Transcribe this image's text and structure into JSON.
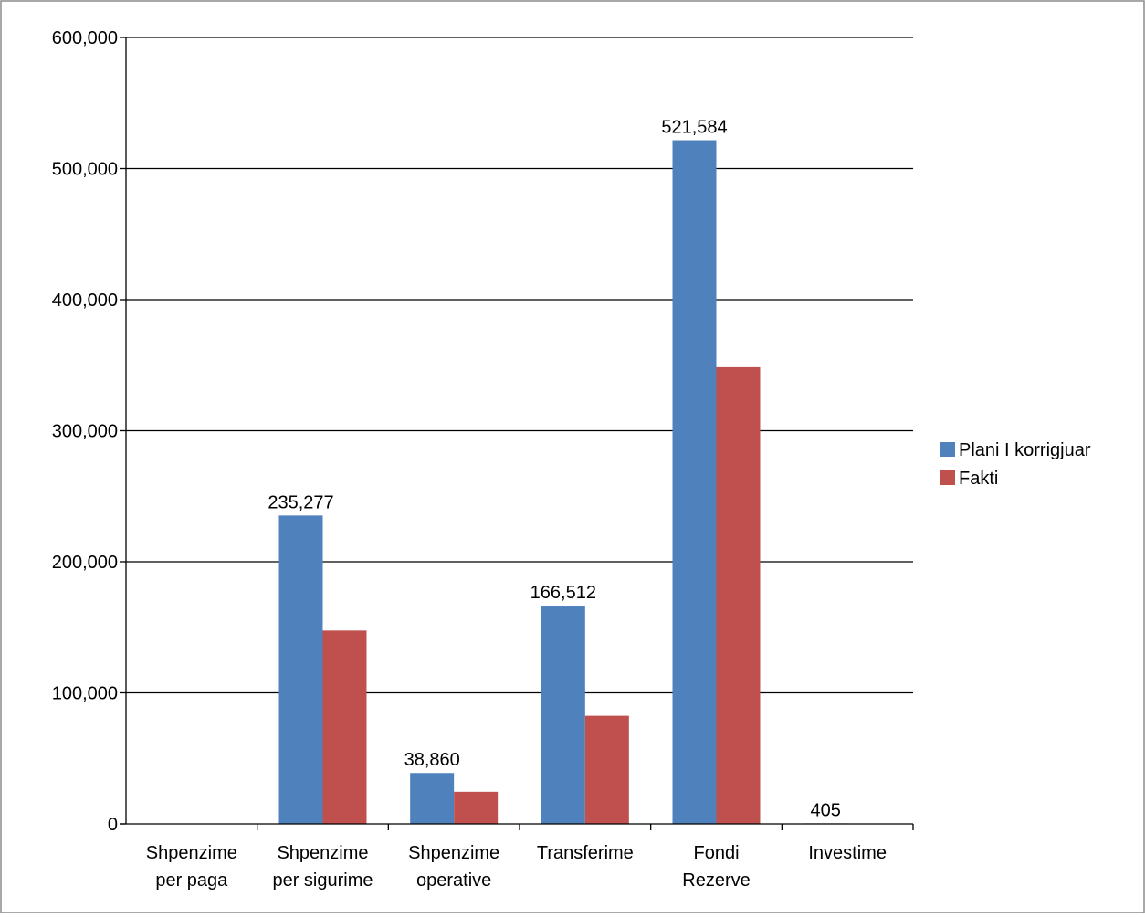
{
  "chart_data": {
    "type": "bar",
    "title": "",
    "xlabel": "",
    "ylabel": "",
    "categories": [
      [
        "Shpenzime",
        "per paga"
      ],
      [
        "Shpenzime",
        "per sigurime"
      ],
      [
        "Shpenzime",
        "operative"
      ],
      [
        "Transferime"
      ],
      [
        "Fondi",
        "Rezerve"
      ],
      [
        "Investime"
      ]
    ],
    "series": [
      {
        "name": "Plani I korrigjuar",
        "color": "#4F81BD",
        "values": [
          0,
          235277,
          38860,
          166512,
          521584,
          405
        ],
        "labels": [
          "",
          "235,277",
          "38,860",
          "166,512",
          "521,584",
          "405"
        ]
      },
      {
        "name": "Fakti",
        "color": "#C0504D",
        "values": [
          0,
          147500,
          24500,
          82500,
          348500,
          0
        ],
        "labels": [
          "",
          "",
          "",
          "",
          "",
          ""
        ]
      }
    ],
    "ylim": [
      0,
      600000
    ],
    "yticks": [
      0,
      100000,
      200000,
      300000,
      400000,
      500000,
      600000
    ],
    "ytick_labels": [
      "0",
      "100,000",
      "200,000",
      "300,000",
      "400,000",
      "500,000",
      "600,000"
    ],
    "grid": true,
    "legend_position": "right"
  }
}
